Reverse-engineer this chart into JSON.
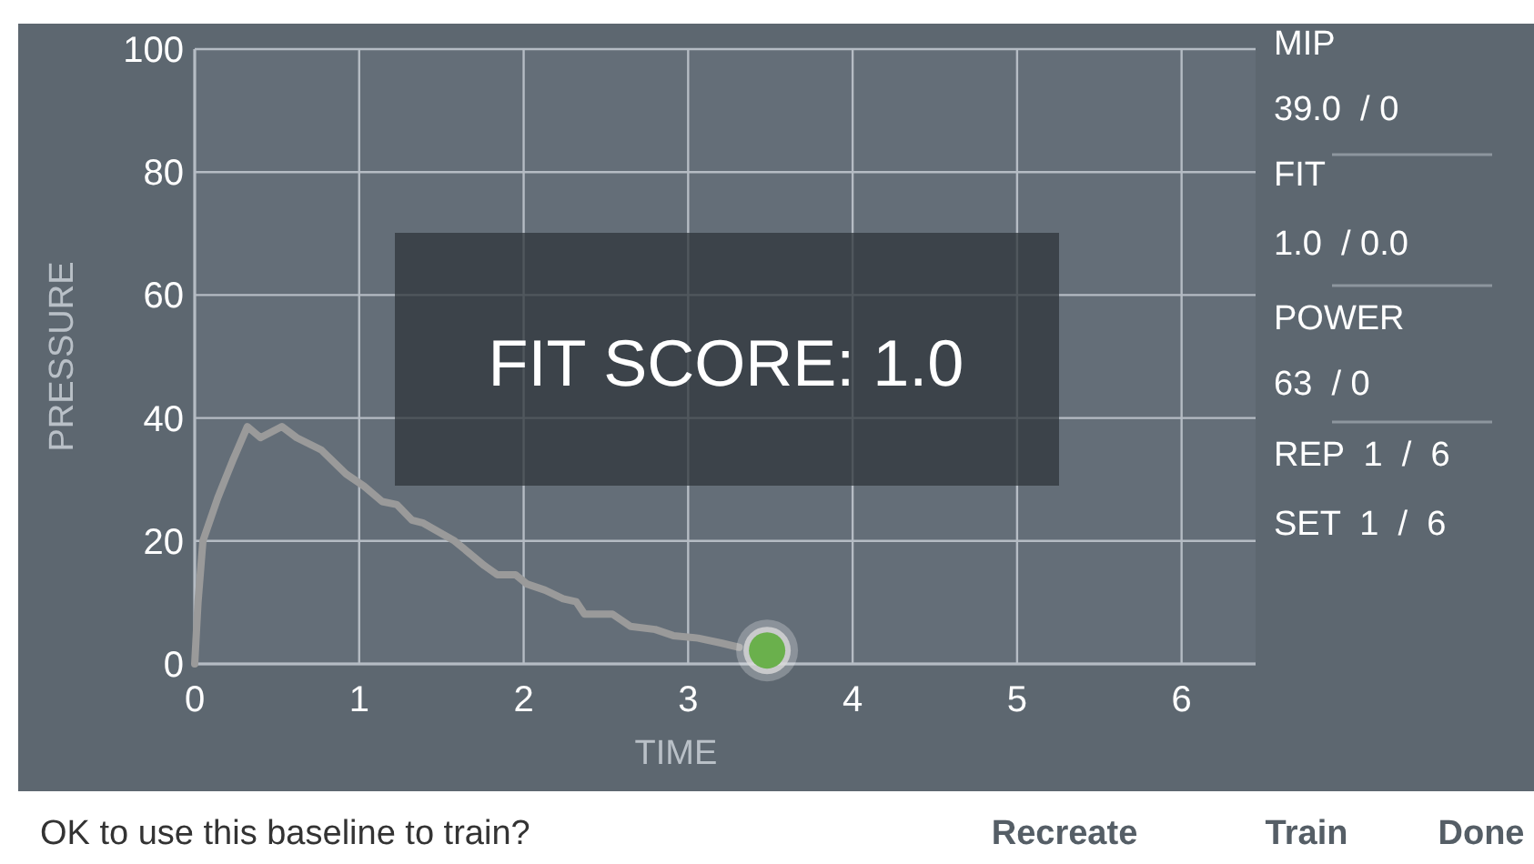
{
  "chart_data": {
    "type": "line",
    "xlabel": "TIME",
    "ylabel": "PRESSURE",
    "xlim": [
      0,
      6.45
    ],
    "ylim": [
      0,
      100
    ],
    "xticks": [
      0,
      1,
      2,
      3,
      4,
      5,
      6
    ],
    "yticks": [
      0,
      20,
      40,
      60,
      80,
      100
    ],
    "grid": true,
    "series": [
      {
        "color": "#9a9a9a",
        "marker": "none",
        "x": [
          0,
          0.02,
          0.05,
          0.14,
          0.23,
          0.32,
          0.4,
          0.53,
          0.62,
          0.77,
          0.92,
          1.03,
          1.14,
          1.23,
          1.32,
          1.39,
          1.58,
          1.76,
          1.84,
          1.95,
          2.02,
          2.13,
          2.24,
          2.32,
          2.37,
          2.54,
          2.65,
          2.8,
          2.91,
          3.06,
          3.2,
          3.31
        ],
        "values": [
          0,
          10,
          20,
          27,
          33,
          38.6,
          36.8,
          38.6,
          36.8,
          34.8,
          30.9,
          28.9,
          26.4,
          25.9,
          23.4,
          22.9,
          20,
          16,
          14.5,
          14.5,
          13,
          12,
          10.6,
          10.1,
          8.1,
          8.1,
          6.1,
          5.6,
          4.6,
          4.2,
          3.4,
          2.7
        ]
      },
      {
        "type": "scatter",
        "color": "#6ab04c",
        "marker": "circle",
        "x": [
          3.48
        ],
        "values": [
          2.2
        ]
      }
    ],
    "annotations": [
      "FIT SCORE: 1.0",
      "MIP",
      "39.0  / 0",
      "FIT",
      "1.0  / 0.0",
      "POWER",
      "63  / 0",
      "REP  1  /  6",
      "SET  1  /  6",
      "OK to use this baseline to train?",
      "Recreate",
      "Train",
      "Done"
    ]
  }
}
